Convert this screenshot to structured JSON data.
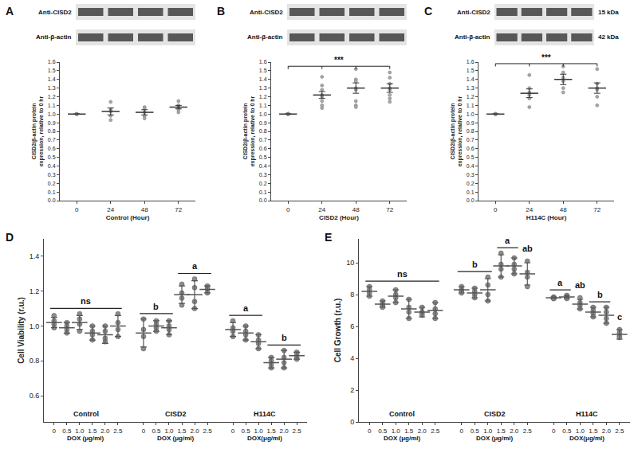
{
  "chart_data": [
    {
      "panel": "A",
      "type": "scatter",
      "grid": false,
      "blots": [
        "Anti-CISD2",
        "Anti-β-actin"
      ],
      "x_title": "Control (Hour)",
      "y_title": "CISD2/β-actin protein expression, relative to 0 hr",
      "categories": [
        "0",
        "24",
        "48",
        "72"
      ],
      "values": [
        1.0,
        1.03,
        1.02,
        1.08
      ],
      "error": [
        0,
        0.04,
        0.03,
        0.02
      ],
      "points": [
        [
          1.0,
          1.0,
          1.0,
          1.0,
          1.0
        ],
        [
          1.14,
          1.05,
          1.03,
          0.98,
          0.93
        ],
        [
          1.08,
          1.06,
          1.02,
          0.98,
          0.95
        ],
        [
          1.15,
          1.1,
          1.08,
          1.05,
          1.02
        ]
      ],
      "ylim": [
        0,
        1.6
      ],
      "yticks": [
        {
          "value": 0,
          "label": "0.0"
        },
        {
          "value": 0.1,
          "label": "0.1"
        },
        {
          "value": 0.2,
          "label": "0.2"
        },
        {
          "value": 0.3,
          "label": "0.3"
        },
        {
          "value": 0.4,
          "label": "0.4"
        },
        {
          "value": 0.5,
          "label": "0.5"
        },
        {
          "value": 0.6,
          "label": "0.6"
        },
        {
          "value": 0.7,
          "label": "0.7"
        },
        {
          "value": 0.8,
          "label": "0.8"
        },
        {
          "value": 0.9,
          "label": "0.9"
        },
        {
          "value": 1.0,
          "label": "1.0"
        },
        {
          "value": 1.1,
          "label": "1.1"
        },
        {
          "value": 1.2,
          "label": "1.2"
        },
        {
          "value": 1.3,
          "label": "1.3"
        },
        {
          "value": 1.4,
          "label": "1.4"
        },
        {
          "value": 1.5,
          "label": "1.5"
        },
        {
          "value": 1.6,
          "label": "1.6"
        }
      ]
    },
    {
      "panel": "B",
      "type": "scatter",
      "grid": false,
      "blots": [
        "Anti-CISD2",
        "Anti-β-actin"
      ],
      "x_title": "CISD2 (Hour)",
      "y_title": "CISD2/β-actin protein expression, relative to 0 hr",
      "categories": [
        "0",
        "24",
        "48",
        "72"
      ],
      "values": [
        1.0,
        1.22,
        1.3,
        1.3
      ],
      "error": [
        0,
        0.04,
        0.06,
        0.05
      ],
      "points": [
        [
          1.0,
          1.0,
          1.0,
          1.0,
          1.0,
          1.0,
          1.0,
          1.0
        ],
        [
          1.43,
          1.33,
          1.28,
          1.22,
          1.2,
          1.15,
          1.1,
          1.07
        ],
        [
          1.52,
          1.4,
          1.38,
          1.3,
          1.28,
          1.15,
          1.1,
          1.08
        ],
        [
          1.48,
          1.42,
          1.35,
          1.3,
          1.28,
          1.22,
          1.18,
          1.14
        ]
      ],
      "significance": {
        "text": "***",
        "from": 0,
        "to": 3
      },
      "ylim": [
        0,
        1.6
      ],
      "yticks": [
        {
          "value": 0,
          "label": "0.0"
        },
        {
          "value": 0.1,
          "label": "0.1"
        },
        {
          "value": 0.2,
          "label": "0.2"
        },
        {
          "value": 0.3,
          "label": "0.3"
        },
        {
          "value": 0.4,
          "label": "0.4"
        },
        {
          "value": 0.5,
          "label": "0.5"
        },
        {
          "value": 0.6,
          "label": "0.6"
        },
        {
          "value": 0.7,
          "label": "0.7"
        },
        {
          "value": 0.8,
          "label": "0.8"
        },
        {
          "value": 0.9,
          "label": "0.9"
        },
        {
          "value": 1.0,
          "label": "1.0"
        },
        {
          "value": 1.1,
          "label": "1.1"
        },
        {
          "value": 1.2,
          "label": "1.2"
        },
        {
          "value": 1.3,
          "label": "1.3"
        },
        {
          "value": 1.4,
          "label": "1.4"
        },
        {
          "value": 1.5,
          "label": "1.5"
        },
        {
          "value": 1.6,
          "label": "1.6"
        }
      ]
    },
    {
      "panel": "C",
      "type": "scatter",
      "grid": false,
      "blots": [
        "Anti-CISD2",
        "Anti-β-actin"
      ],
      "blot_sizes": [
        "15 kDa",
        "42 kDa"
      ],
      "x_title": "H114C (Hour)",
      "y_title": "CISD2/β-actin protein expression, relative to 0 hr",
      "categories": [
        "0",
        "24",
        "48",
        "72"
      ],
      "values": [
        1.0,
        1.24,
        1.4,
        1.3
      ],
      "error": [
        0,
        0.05,
        0.06,
        0.06
      ],
      "points": [
        [
          1.0,
          1.0,
          1.0,
          1.0,
          1.0,
          1.0
        ],
        [
          1.45,
          1.3,
          1.25,
          1.22,
          1.18,
          1.08
        ],
        [
          1.55,
          1.48,
          1.42,
          1.38,
          1.3,
          1.25
        ],
        [
          1.52,
          1.35,
          1.3,
          1.28,
          1.2,
          1.1
        ]
      ],
      "significance": {
        "text": "***",
        "from": 0,
        "to": 3
      },
      "ylim": [
        0,
        1.6
      ],
      "yticks": [
        {
          "value": 0,
          "label": "0.0"
        },
        {
          "value": 0.1,
          "label": "0.1"
        },
        {
          "value": 0.2,
          "label": "0.2"
        },
        {
          "value": 0.3,
          "label": "0.3"
        },
        {
          "value": 0.4,
          "label": "0.4"
        },
        {
          "value": 0.5,
          "label": "0.5"
        },
        {
          "value": 0.6,
          "label": "0.6"
        },
        {
          "value": 0.7,
          "label": "0.7"
        },
        {
          "value": 0.8,
          "label": "0.8"
        },
        {
          "value": 0.9,
          "label": "0.9"
        },
        {
          "value": 1.0,
          "label": "1.0"
        },
        {
          "value": 1.1,
          "label": "1.1"
        },
        {
          "value": 1.2,
          "label": "1.2"
        },
        {
          "value": 1.3,
          "label": "1.3"
        },
        {
          "value": 1.4,
          "label": "1.4"
        },
        {
          "value": 1.5,
          "label": "1.5"
        },
        {
          "value": 1.6,
          "label": "1.6"
        }
      ]
    },
    {
      "panel": "D",
      "type": "scatter",
      "grid": false,
      "y_title": "Cell Viability (r.u.)",
      "categories": [
        "0",
        "0.5",
        "1.0",
        "1.5",
        "2.0",
        "2.5"
      ],
      "series": [
        {
          "name": "Control",
          "x_title": "DOX (μg/ml)",
          "values": [
            1.02,
            0.99,
            1.02,
            0.96,
            0.95,
            1.0
          ],
          "error": [
            0.03,
            0.03,
            0.04,
            0.04,
            0.05,
            0.06
          ],
          "points": [
            [
              1.06,
              1.03,
              1.01,
              0.99
            ],
            [
              1.02,
              1.0,
              0.98,
              0.96
            ],
            [
              1.07,
              1.04,
              1.01,
              0.97
            ],
            [
              1.0,
              0.97,
              0.95,
              0.92
            ],
            [
              1.0,
              0.97,
              0.93,
              0.91
            ],
            [
              1.07,
              1.02,
              0.98,
              0.94
            ]
          ]
        },
        {
          "name": "CISD2",
          "x_title": "DOX (μg/ml)",
          "values": [
            0.96,
            1.0,
            0.99,
            1.18,
            1.18,
            1.21
          ],
          "error": [
            0.08,
            0.03,
            0.04,
            0.05,
            0.08,
            0.02
          ],
          "points": [
            [
              1.04,
              0.98,
              0.94,
              0.87
            ],
            [
              1.03,
              1.01,
              0.99,
              0.97
            ],
            [
              1.03,
              1.0,
              0.98,
              0.95
            ],
            [
              1.24,
              1.19,
              1.16,
              1.12
            ],
            [
              1.27,
              1.22,
              1.14,
              1.1
            ],
            [
              1.23,
              1.22,
              1.21,
              1.19
            ]
          ]
        },
        {
          "name": "H114C",
          "x_title": "DOX(μg/ml)",
          "values": [
            0.98,
            0.96,
            0.91,
            0.79,
            0.81,
            0.83
          ],
          "error": [
            0.04,
            0.04,
            0.04,
            0.03,
            0.05,
            0.02
          ],
          "points": [
            [
              1.03,
              0.99,
              0.97,
              0.94
            ],
            [
              1.0,
              0.97,
              0.95,
              0.92
            ],
            [
              0.95,
              0.92,
              0.9,
              0.87
            ],
            [
              0.82,
              0.8,
              0.78,
              0.76
            ],
            [
              0.86,
              0.82,
              0.79,
              0.76
            ],
            [
              0.85,
              0.84,
              0.82,
              0.81
            ]
          ]
        }
      ],
      "letters": [
        {
          "series": 0,
          "text": "ns",
          "from": 0,
          "to": 5
        },
        {
          "series": 1,
          "text": "b",
          "from": 0,
          "to": 2
        },
        {
          "series": 1,
          "text": "a",
          "from": 3,
          "to": 5
        },
        {
          "series": 2,
          "text": "a",
          "from": 0,
          "to": 2
        },
        {
          "series": 2,
          "text": "b",
          "from": 3,
          "to": 5
        }
      ],
      "ylim": [
        0.45,
        1.5
      ],
      "yticks": [
        0.6,
        0.8,
        {
          "value": 1.0,
          "label": "1.0"
        },
        1.2,
        1.4
      ]
    },
    {
      "panel": "E",
      "type": "scatter",
      "grid": false,
      "y_title": "Cell Growth (r.u.)",
      "categories": [
        "0",
        "0.5",
        "1.0",
        "1.5",
        "2.0",
        "2.5"
      ],
      "series": [
        {
          "name": "Control",
          "x_title": "DOX (μg/ml)",
          "values": [
            8.2,
            7.4,
            7.9,
            7.1,
            6.9,
            7.0
          ],
          "error": [
            0.3,
            0.2,
            0.4,
            0.6,
            0.3,
            0.5
          ],
          "points": [
            [
              8.5,
              8.3,
              8.1,
              7.9
            ],
            [
              7.6,
              7.4,
              7.3,
              7.2
            ],
            [
              8.3,
              8.0,
              7.8,
              7.5
            ],
            [
              7.7,
              7.2,
              6.9,
              6.5
            ],
            [
              7.2,
              6.9,
              6.8,
              6.7
            ],
            [
              7.5,
              7.1,
              6.8,
              6.5
            ]
          ]
        },
        {
          "name": "CISD2",
          "x_title": "DOX (μg/ml)",
          "values": [
            8.3,
            8.1,
            8.3,
            9.8,
            9.8,
            9.3
          ],
          "error": [
            0.2,
            0.3,
            0.7,
            0.7,
            0.5,
            0.7
          ],
          "points": [
            [
              8.5,
              8.3,
              8.2,
              8.1
            ],
            [
              8.4,
              8.2,
              8.0,
              7.8
            ],
            [
              9.1,
              8.6,
              8.0,
              7.6
            ],
            [
              10.6,
              9.9,
              9.6,
              9.1
            ],
            [
              10.3,
              9.9,
              9.6,
              9.3
            ],
            [
              10.1,
              9.4,
              9.1,
              8.5
            ]
          ]
        },
        {
          "name": "H114C",
          "x_title": "DOX(μg/ml)",
          "values": [
            7.8,
            7.85,
            7.4,
            6.9,
            6.7,
            5.5
          ],
          "error": [
            0.05,
            0.1,
            0.3,
            0.3,
            0.5,
            0.3
          ],
          "points": [
            [
              7.85,
              7.8,
              7.75,
              7.75
            ],
            [
              7.95,
              7.85,
              7.8,
              7.75
            ],
            [
              7.8,
              7.5,
              7.3,
              7.1
            ],
            [
              7.2,
              7.0,
              6.8,
              6.6
            ],
            [
              7.2,
              6.9,
              6.5,
              6.2
            ],
            [
              5.8,
              5.6,
              5.4,
              5.3
            ]
          ]
        }
      ],
      "letters": [
        {
          "series": 0,
          "text": "ns",
          "from": 0,
          "to": 5
        },
        {
          "series": 1,
          "text": "b",
          "from": 0,
          "to": 2
        },
        {
          "series": 1,
          "text": "a",
          "from": 3,
          "to": 4
        },
        {
          "series": 1,
          "text": "ab",
          "from": 5,
          "to": 5
        },
        {
          "series": 2,
          "text": "a",
          "from": 0,
          "to": 1
        },
        {
          "series": 2,
          "text": "ab",
          "from": 2,
          "to": 2
        },
        {
          "series": 2,
          "text": "b",
          "from": 3,
          "to": 4
        },
        {
          "series": 2,
          "text": "c",
          "from": 5,
          "to": 5
        }
      ],
      "ylim": [
        0,
        11.5
      ],
      "yticks": [
        0,
        2,
        4,
        6,
        8,
        10
      ]
    }
  ]
}
